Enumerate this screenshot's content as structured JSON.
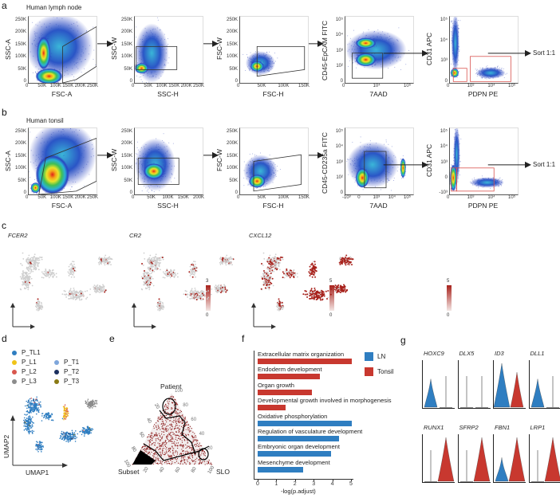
{
  "panel_labels": {
    "a": "a",
    "b": "b",
    "c": "c",
    "d": "d",
    "e": "e",
    "f": "f",
    "g": "g"
  },
  "row_a": {
    "title": "Human lymph node",
    "sort_label": "Sort 1:1",
    "plots": [
      {
        "ylabel": "SSC-A",
        "xlabel": "FSC-A",
        "yticks": [
          "0",
          "50K",
          "100K",
          "150K",
          "200K",
          "250K"
        ],
        "xticks": [
          "0",
          "50K",
          "100K",
          "150K",
          "200K",
          "250K"
        ]
      },
      {
        "ylabel": "SSC-W",
        "xlabel": "SSC-H",
        "yticks": [
          "0",
          "50K",
          "100K",
          "150K",
          "200K",
          "250K"
        ],
        "xticks": [
          "0",
          "50K",
          "100K",
          "150K",
          "200K",
          "250K"
        ]
      },
      {
        "ylabel": "FSC-W",
        "xlabel": "FSC-H",
        "yticks": [
          "0",
          "50K",
          "100K",
          "150K",
          "200K",
          "250K"
        ],
        "xticks": [
          "0",
          "50K",
          "100K",
          "150K"
        ]
      },
      {
        "ylabel": "CD45-EpCAM FITC",
        "xlabel": "7AAD",
        "yticks": [
          "0",
          "10²",
          "10³",
          "10⁴",
          "10⁵"
        ],
        "xticks": [
          "0",
          "10⁴",
          "10⁵"
        ]
      },
      {
        "ylabel": "CD31 APC",
        "xlabel": "PDPN PE",
        "yticks": [
          "0",
          "10³",
          "10⁴",
          "10⁵"
        ],
        "xticks": [
          "0",
          "10³",
          "10⁴",
          "10⁵"
        ]
      }
    ]
  },
  "row_b": {
    "title": "Human tonsil",
    "sort_label": "Sort 1:1",
    "plots": [
      {
        "ylabel": "SSC-A",
        "xlabel": "FSC-A",
        "yticks": [
          "0",
          "50K",
          "100K",
          "150K",
          "200K",
          "250K"
        ],
        "xticks": [
          "0",
          "50K",
          "100K",
          "150K",
          "200K",
          "250K"
        ]
      },
      {
        "ylabel": "SSC-W",
        "xlabel": "SSC-H",
        "yticks": [
          "0",
          "50K",
          "100K",
          "150K",
          "200K",
          "250K"
        ],
        "xticks": [
          "0",
          "50K",
          "100K",
          "150K",
          "200K"
        ]
      },
      {
        "ylabel": "FSC-W",
        "xlabel": "FSC-H",
        "yticks": [
          "0",
          "50K",
          "100K",
          "150K",
          "200K",
          "250K"
        ],
        "xticks": [
          "0",
          "50K",
          "100K",
          "150K"
        ]
      },
      {
        "ylabel": "CD45-CD235a FITC",
        "xlabel": "7AAD",
        "yticks": [
          "0",
          "10²",
          "10³",
          "10⁴",
          "10⁵"
        ],
        "xticks": [
          "-10³",
          "0",
          "10³",
          "10⁴",
          "10⁵"
        ]
      },
      {
        "ylabel": "CD31 APC",
        "xlabel": "PDPN PE",
        "yticks": [
          "-10³",
          "0",
          "10³",
          "10⁴",
          "10⁵"
        ],
        "xticks": [
          "0",
          "10³",
          "10⁴",
          "10⁵"
        ]
      }
    ]
  },
  "row_c": {
    "features": [
      {
        "gene": "FCER2",
        "scale_max": "3",
        "scale_min": "0",
        "expr_fraction": 0.03
      },
      {
        "gene": "CR2",
        "scale_max": "5",
        "scale_min": "0",
        "expr_fraction": 0.12
      },
      {
        "gene": "CXCL12",
        "scale_max": "5",
        "scale_min": "0",
        "expr_fraction": 0.55
      }
    ]
  },
  "panel_d": {
    "legend": [
      {
        "label": "P_TL1",
        "color": "#2f7ec1"
      },
      {
        "label": "P_L1",
        "color": "#f0c419"
      },
      {
        "label": "P_L2",
        "color": "#d9574e"
      },
      {
        "label": "P_L3",
        "color": "#8c8c8c"
      },
      {
        "label": "P_T1",
        "color": "#7ea6db"
      },
      {
        "label": "P_T2",
        "color": "#1b2f5e"
      },
      {
        "label": "P_T3",
        "color": "#8a7a14"
      }
    ],
    "xlabel": "UMAP1",
    "ylabel": "UMAP2"
  },
  "panel_e": {
    "vertex_top": "Patient",
    "vertex_left": "Subset",
    "vertex_right": "SLO",
    "right_ticks": [
      "20",
      "40",
      "60",
      "80",
      "100"
    ],
    "left_ticks": [
      "20",
      "40",
      "60",
      "80",
      "100"
    ],
    "bottom_ticks": [
      "20",
      "40",
      "60",
      "80",
      "100"
    ]
  },
  "chart_data": {
    "type": "bar",
    "orientation": "horizontal",
    "categories": [
      "Extracellular matrix organization",
      "Endoderm development",
      "Organ growth",
      "Developmental growth involved in morphogenesis",
      "Oxidative phosphorylation",
      "Regulation of vasculature development",
      "Embryonic organ development",
      "Mesenchyme development"
    ],
    "values": [
      5.05,
      3.35,
      2.9,
      1.5,
      5.05,
      4.35,
      3.95,
      2.45
    ],
    "groups": [
      "Tonsil",
      "Tonsil",
      "Tonsil",
      "Tonsil",
      "LN",
      "LN",
      "LN",
      "LN"
    ],
    "legend": [
      {
        "name": "LN",
        "color": "#2f7ec1"
      },
      {
        "name": "Tonsil",
        "color": "#c8382f"
      }
    ],
    "xlabel": "-log(p.adjust)",
    "xticks": [
      "0",
      "1",
      "2",
      "3",
      "4",
      "5"
    ],
    "xlim": [
      0,
      5.3
    ],
    "legend_position": "top-right"
  },
  "panel_g": {
    "genes_row1": [
      {
        "gene": "HOXC9",
        "ln": 0.65,
        "tonsil": 0.0
      },
      {
        "gene": "DLX5",
        "ln": 0.0,
        "tonsil": 0.0
      },
      {
        "gene": "ID3",
        "ln": 1.0,
        "tonsil": 0.8
      },
      {
        "gene": "DLL1",
        "ln": 0.65,
        "tonsil": 0.0
      }
    ],
    "genes_row2": [
      {
        "gene": "RUNX1",
        "ln": 0.0,
        "tonsil": 1.0
      },
      {
        "gene": "SFRP2",
        "ln": 0.0,
        "tonsil": 1.0
      },
      {
        "gene": "FBN1",
        "ln": 0.55,
        "tonsil": 1.0
      },
      {
        "gene": "LRP1",
        "ln": 0.0,
        "tonsil": 1.0
      }
    ],
    "colors": {
      "ln": "#2f7ec1",
      "tonsil": "#c8382f"
    }
  }
}
